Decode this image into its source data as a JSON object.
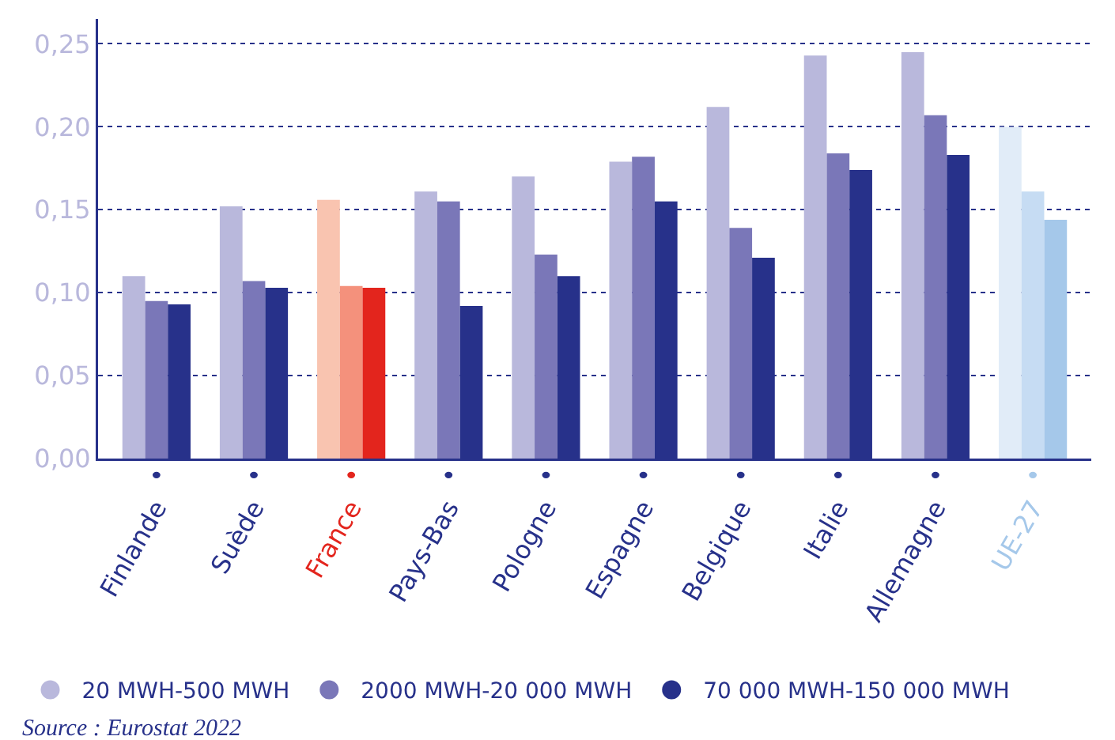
{
  "chart_data": {
    "type": "bar",
    "categories": [
      "Finlande",
      "Suède",
      "France",
      "Pays-Bas",
      "Pologne",
      "Espagne",
      "Belgique",
      "Italie",
      "Allemagne",
      "UE-27"
    ],
    "series": [
      {
        "name": "20 MWH-500 MWH",
        "color": "#b9b8dc",
        "colors": [
          "#b9b8dc",
          "#b9b8dc",
          "#f9c4b0",
          "#b9b8dc",
          "#b9b8dc",
          "#b9b8dc",
          "#b9b8dc",
          "#b9b8dc",
          "#b9b8dc",
          "#e1ecf8"
        ],
        "values": [
          0.11,
          0.152,
          0.156,
          0.161,
          0.17,
          0.179,
          0.212,
          0.243,
          0.245,
          0.2
        ]
      },
      {
        "name": "2000 MWH-20 000 MWH",
        "color": "#7a77b8",
        "colors": [
          "#7a77b8",
          "#7a77b8",
          "#f4917c",
          "#7a77b8",
          "#7a77b8",
          "#7a77b8",
          "#7a77b8",
          "#7a77b8",
          "#7a77b8",
          "#c6dcf3"
        ],
        "values": [
          0.095,
          0.107,
          0.104,
          0.155,
          0.123,
          0.182,
          0.139,
          0.184,
          0.207,
          0.161
        ]
      },
      {
        "name": "70 000 MWH-150 000 MWH",
        "color": "#27318a",
        "colors": [
          "#27318a",
          "#27318a",
          "#e3251d",
          "#27318a",
          "#27318a",
          "#27318a",
          "#27318a",
          "#27318a",
          "#27318a",
          "#a5c8ea"
        ],
        "values": [
          0.093,
          0.103,
          0.103,
          0.092,
          0.11,
          0.155,
          0.121,
          0.174,
          0.183,
          0.144
        ]
      }
    ],
    "ylim": [
      0,
      0.265
    ],
    "yticks": [
      {
        "value": 0,
        "label": "0,00"
      },
      {
        "value": 0.05,
        "label": "0,05"
      },
      {
        "value": 0.1,
        "label": "0,10"
      },
      {
        "value": 0.15,
        "label": "0,15"
      },
      {
        "value": 0.2,
        "label": "0,20"
      },
      {
        "value": 0.25,
        "label": "0,25"
      }
    ],
    "grid": "y",
    "legend": "bottom left",
    "annotations": [
      "Source : Eurostat 2022"
    ]
  }
}
